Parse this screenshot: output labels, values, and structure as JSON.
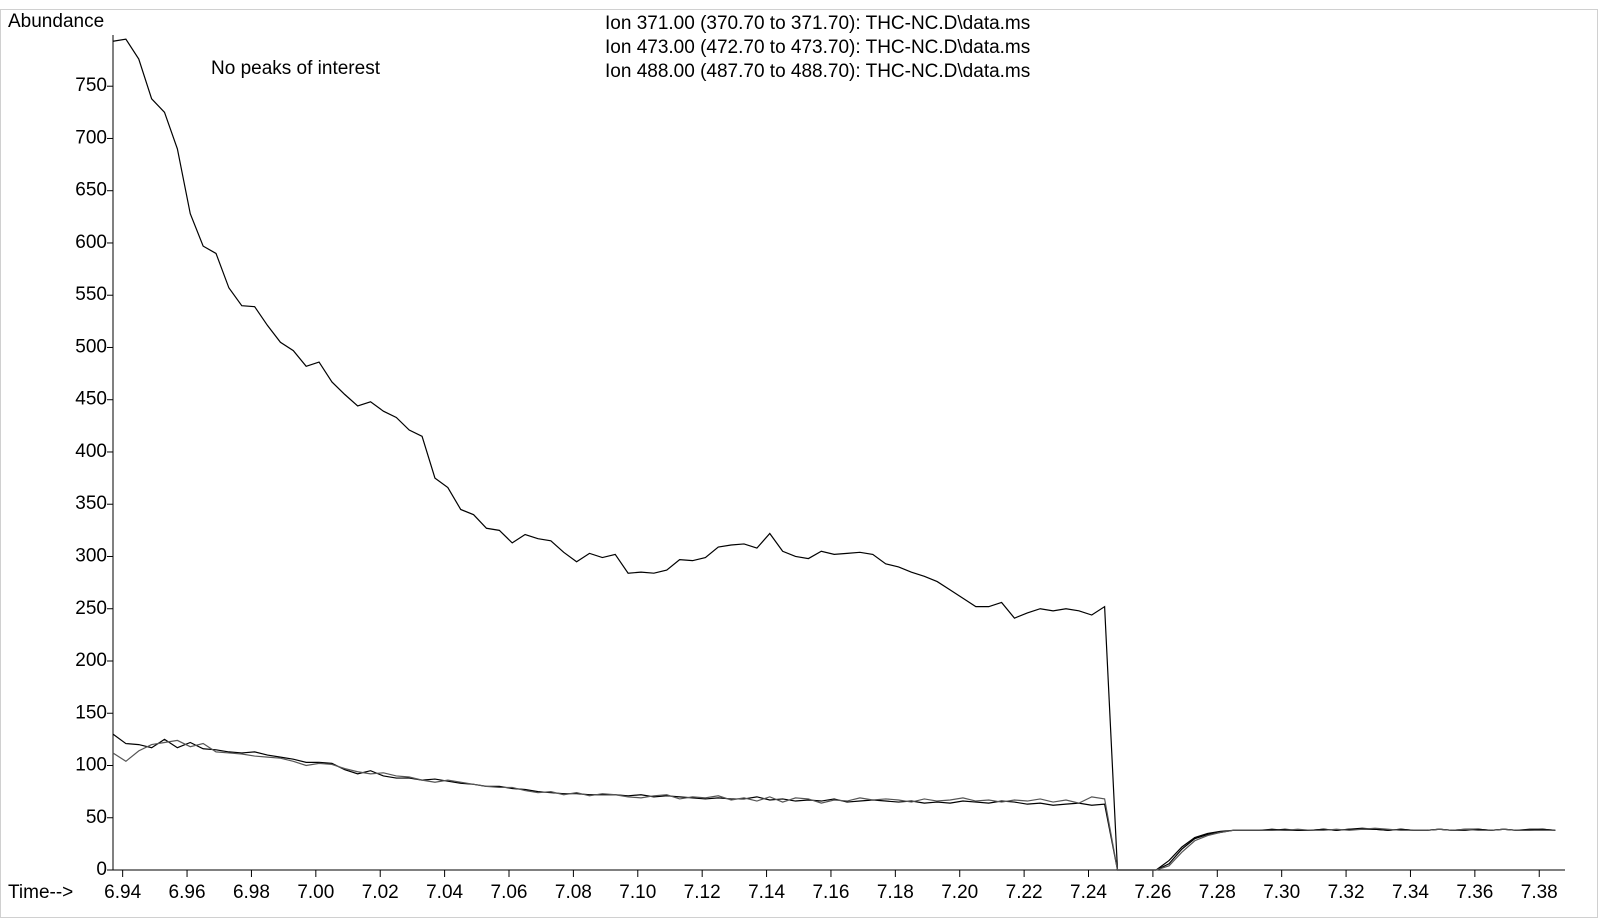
{
  "chart_data": {
    "type": "line",
    "y_label": "Abundance",
    "x_label": "Time-->",
    "annotation": "No peaks of interest",
    "xlim": [
      6.937,
      7.388
    ],
    "ylim": [
      0,
      799
    ],
    "xticks": [
      6.94,
      6.96,
      6.98,
      {
        "value": 7.0,
        "label": "7.00"
      },
      7.02,
      7.04,
      7.06,
      7.08,
      {
        "value": 7.1,
        "label": "7.10"
      },
      7.12,
      7.14,
      7.16,
      7.18,
      {
        "value": 7.2,
        "label": "7.20"
      },
      7.22,
      7.24,
      7.26,
      7.28,
      {
        "value": 7.3,
        "label": "7.30"
      },
      7.32,
      7.34,
      7.36,
      7.38
    ],
    "yticks": [
      0,
      50,
      100,
      150,
      200,
      250,
      300,
      350,
      400,
      450,
      500,
      550,
      600,
      650,
      700,
      750
    ],
    "x": [
      6.937,
      6.941,
      6.945,
      6.949,
      6.953,
      6.957,
      6.961,
      6.965,
      6.969,
      6.973,
      6.977,
      6.981,
      6.985,
      6.989,
      6.993,
      6.997,
      7.001,
      7.005,
      7.009,
      7.013,
      7.017,
      7.021,
      7.025,
      7.029,
      7.033,
      7.037,
      7.041,
      7.045,
      7.049,
      7.053,
      7.057,
      7.061,
      7.065,
      7.069,
      7.073,
      7.077,
      7.081,
      7.085,
      7.089,
      7.093,
      7.097,
      7.101,
      7.105,
      7.109,
      7.113,
      7.117,
      7.121,
      7.125,
      7.129,
      7.133,
      7.137,
      7.141,
      7.145,
      7.149,
      7.153,
      7.157,
      7.161,
      7.165,
      7.169,
      7.173,
      7.177,
      7.181,
      7.185,
      7.189,
      7.193,
      7.197,
      7.201,
      7.205,
      7.209,
      7.213,
      7.217,
      7.221,
      7.225,
      7.229,
      7.233,
      7.237,
      7.241,
      7.245,
      7.249,
      7.253,
      7.257,
      7.261,
      7.265,
      7.269,
      7.273,
      7.277,
      7.281,
      7.285,
      7.289,
      7.293,
      7.297,
      7.301,
      7.305,
      7.309,
      7.313,
      7.317,
      7.321,
      7.325,
      7.329,
      7.333,
      7.337,
      7.341,
      7.345,
      7.349,
      7.353,
      7.357,
      7.361,
      7.365,
      7.369,
      7.373,
      7.377,
      7.381,
      7.385
    ],
    "series": [
      {
        "name": "Ion 371.00 (370.70 to 371.70): THC-NC.D\\data.ms",
        "color": "#000000",
        "values": [
          793,
          795,
          776,
          738,
          725,
          690,
          628,
          597,
          590,
          557,
          540,
          539,
          521,
          505,
          497,
          482,
          486,
          467,
          455,
          444,
          448,
          439,
          433,
          421,
          415,
          375,
          366,
          345,
          340,
          327,
          325,
          313,
          321,
          317,
          315,
          304,
          295,
          303,
          299,
          302,
          284,
          285,
          284,
          287,
          297,
          296,
          299,
          309,
          311,
          312,
          308,
          322,
          305,
          300,
          298,
          305,
          302,
          303,
          304,
          302,
          293,
          290,
          285,
          281,
          276,
          268,
          260,
          252,
          252,
          256,
          241,
          246,
          250,
          248,
          250,
          248,
          244,
          252,
          0,
          0,
          0,
          0,
          9,
          22,
          31,
          35,
          37,
          38,
          38,
          38,
          38,
          39,
          38,
          38,
          39,
          38,
          39,
          40,
          39,
          38,
          39,
          38,
          38,
          39,
          38,
          39,
          39,
          38,
          39,
          38,
          39,
          39,
          38
        ]
      },
      {
        "name": "Ion 473.00 (472.70 to 473.70): THC-NC.D\\data.ms",
        "color": "#000000",
        "values": [
          130,
          121,
          120,
          117,
          125,
          117,
          122,
          116,
          115,
          113,
          112,
          113,
          110,
          108,
          106,
          103,
          103,
          102,
          96,
          92,
          95,
          90,
          88,
          88,
          86,
          87,
          85,
          83,
          82,
          80,
          80,
          78,
          77,
          75,
          74,
          73,
          73,
          72,
          72,
          72,
          71,
          72,
          70,
          71,
          70,
          69,
          68,
          69,
          68,
          68,
          70,
          67,
          68,
          66,
          67,
          66,
          68,
          65,
          66,
          67,
          66,
          65,
          66,
          64,
          65,
          64,
          66,
          65,
          64,
          66,
          65,
          63,
          64,
          62,
          63,
          64,
          62,
          63,
          0,
          0,
          0,
          0,
          6,
          20,
          30,
          34,
          36,
          38,
          38,
          38,
          39,
          38,
          38,
          38,
          39,
          38,
          39,
          39,
          39,
          38,
          39,
          38,
          38,
          39,
          38,
          38,
          39,
          38,
          39,
          38,
          38,
          39,
          38
        ]
      },
      {
        "name": "Ion 488.00 (487.70 to 488.70): THC-NC.D\\data.ms",
        "color": "#555555",
        "values": [
          112,
          104,
          114,
          120,
          122,
          124,
          118,
          121,
          113,
          112,
          111,
          109,
          108,
          107,
          104,
          100,
          102,
          101,
          97,
          94,
          92,
          93,
          90,
          89,
          86,
          84,
          86,
          84,
          82,
          80,
          79,
          79,
          76,
          74,
          75,
          72,
          74,
          71,
          73,
          72,
          70,
          69,
          71,
          72,
          68,
          70,
          69,
          71,
          67,
          69,
          66,
          70,
          65,
          69,
          68,
          64,
          67,
          66,
          69,
          67,
          68,
          67,
          65,
          68,
          66,
          67,
          69,
          66,
          67,
          65,
          67,
          66,
          68,
          65,
          67,
          64,
          70,
          68,
          0,
          0,
          0,
          0,
          4,
          17,
          28,
          33,
          36,
          38,
          38,
          38,
          38,
          38,
          39,
          38,
          38,
          39,
          38,
          39,
          40,
          39,
          38,
          38,
          38,
          39,
          38,
          39,
          38,
          38,
          39,
          38,
          38,
          38,
          38
        ]
      }
    ]
  }
}
